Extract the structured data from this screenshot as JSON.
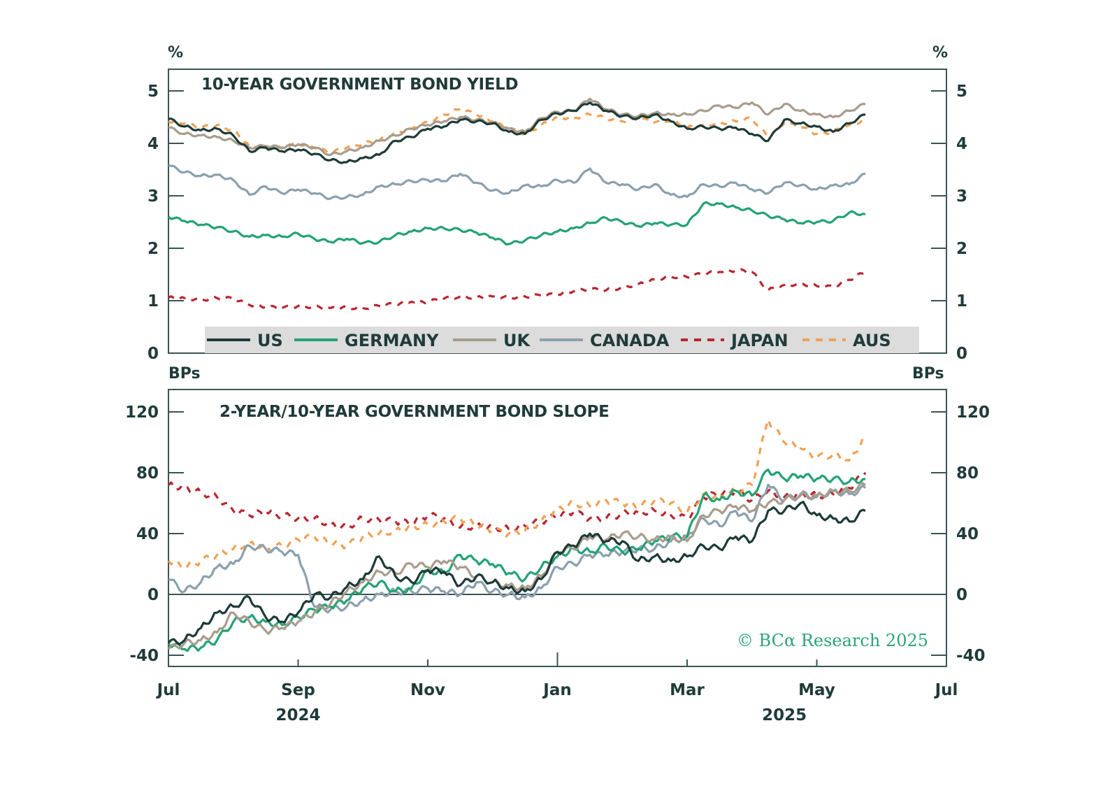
{
  "colors": {
    "axis": "#3a5453",
    "text": "#1f3b3a",
    "legend_bg": "#dcdcdc",
    "credit": "#2aa37a"
  },
  "credit": "© BCα Research 2025",
  "x_axis": {
    "ticks": [
      {
        "m": 0,
        "label": "Jul",
        "year": ""
      },
      {
        "m": 2,
        "label": "Sep",
        "year": "2024"
      },
      {
        "m": 4,
        "label": "Nov",
        "year": ""
      },
      {
        "m": 6,
        "label": "Jan",
        "year": ""
      },
      {
        "m": 8,
        "label": "Mar",
        "year": "2025"
      },
      {
        "m": 10,
        "label": "May",
        "year": ""
      },
      {
        "m": 12,
        "label": "Jul",
        "year": ""
      }
    ],
    "year_labels": [
      {
        "m": 2,
        "label": "2024"
      },
      {
        "m": 9.5,
        "label": "2025"
      }
    ],
    "range": [
      0,
      12
    ],
    "unit": "months since Jul 2024"
  },
  "legend": [
    {
      "key": "us",
      "label": "US",
      "color": "#1d3b38",
      "dashed": false
    },
    {
      "key": "germany",
      "label": "GERMANY",
      "color": "#23a275",
      "dashed": false
    },
    {
      "key": "uk",
      "label": "UK",
      "color": "#a89c8c",
      "dashed": false
    },
    {
      "key": "canada",
      "label": "CANADA",
      "color": "#8aa0ae",
      "dashed": false
    },
    {
      "key": "japan",
      "label": "JAPAN",
      "color": "#b8262e",
      "dashed": true
    },
    {
      "key": "aus",
      "label": "AUS",
      "color": "#f0a054",
      "dashed": true
    }
  ],
  "chart_data": [
    {
      "type": "line",
      "title": "10-YEAR GOVERNMENT BOND YIELD",
      "ylabel_left": "%",
      "ylabel_right": "%",
      "ylim": [
        0,
        5.4
      ],
      "yticks": [
        0,
        1,
        2,
        3,
        4,
        5
      ],
      "xlabel": "",
      "legend_position": "bottom",
      "x": [
        0,
        0.25,
        0.5,
        0.75,
        1.0,
        1.25,
        1.5,
        1.75,
        2.0,
        2.25,
        2.5,
        2.75,
        3.0,
        3.25,
        3.5,
        3.75,
        4.0,
        4.25,
        4.5,
        4.75,
        5.0,
        5.25,
        5.5,
        5.75,
        6.0,
        6.25,
        6.5,
        6.75,
        7.0,
        7.25,
        7.5,
        7.75,
        8.0,
        8.25,
        8.5,
        8.75,
        9.0,
        9.25,
        9.5,
        9.75,
        10.0,
        10.25,
        10.5,
        10.75
      ],
      "series": [
        {
          "name": "US",
          "values": [
            4.47,
            4.32,
            4.25,
            4.28,
            4.15,
            3.85,
            3.92,
            3.85,
            3.88,
            3.8,
            3.68,
            3.64,
            3.72,
            3.78,
            4.05,
            4.12,
            4.28,
            4.32,
            4.45,
            4.42,
            4.38,
            4.22,
            4.18,
            4.45,
            4.57,
            4.62,
            4.78,
            4.62,
            4.52,
            4.48,
            4.55,
            4.42,
            4.28,
            4.32,
            4.28,
            4.3,
            4.18,
            4.05,
            4.45,
            4.38,
            4.32,
            4.22,
            4.38,
            4.55
          ]
        },
        {
          "name": "GERMANY",
          "values": [
            2.6,
            2.52,
            2.45,
            2.4,
            2.32,
            2.22,
            2.25,
            2.22,
            2.28,
            2.18,
            2.12,
            2.18,
            2.1,
            2.12,
            2.25,
            2.32,
            2.38,
            2.38,
            2.35,
            2.3,
            2.2,
            2.08,
            2.15,
            2.25,
            2.32,
            2.38,
            2.48,
            2.58,
            2.5,
            2.42,
            2.48,
            2.45,
            2.45,
            2.85,
            2.85,
            2.78,
            2.72,
            2.62,
            2.55,
            2.48,
            2.5,
            2.52,
            2.68,
            2.65
          ]
        },
        {
          "name": "UK",
          "values": [
            4.3,
            4.18,
            4.15,
            4.12,
            4.05,
            3.92,
            3.95,
            3.92,
            3.98,
            3.92,
            3.78,
            3.85,
            3.92,
            4.05,
            4.15,
            4.28,
            4.35,
            4.42,
            4.5,
            4.45,
            4.4,
            4.28,
            4.22,
            4.48,
            4.6,
            4.62,
            4.85,
            4.65,
            4.55,
            4.52,
            4.58,
            4.55,
            4.55,
            4.62,
            4.72,
            4.68,
            4.78,
            4.55,
            4.75,
            4.62,
            4.55,
            4.5,
            4.62,
            4.75
          ]
        },
        {
          "name": "CANADA",
          "values": [
            3.58,
            3.45,
            3.38,
            3.4,
            3.3,
            3.02,
            3.18,
            3.05,
            3.12,
            3.05,
            2.95,
            2.98,
            3.02,
            3.18,
            3.22,
            3.28,
            3.3,
            3.28,
            3.42,
            3.25,
            3.1,
            3.05,
            3.2,
            3.18,
            3.3,
            3.25,
            3.52,
            3.25,
            3.22,
            3.12,
            3.22,
            3.02,
            2.98,
            3.22,
            3.18,
            3.25,
            3.12,
            3.05,
            3.25,
            3.2,
            3.12,
            3.2,
            3.22,
            3.42
          ]
        },
        {
          "name": "JAPAN",
          "values": [
            1.06,
            1.05,
            1.02,
            1.05,
            1.04,
            0.92,
            0.88,
            0.86,
            0.9,
            0.88,
            0.86,
            0.87,
            0.86,
            0.9,
            0.94,
            0.98,
            0.98,
            1.04,
            1.08,
            1.06,
            1.08,
            1.06,
            1.08,
            1.1,
            1.12,
            1.18,
            1.22,
            1.2,
            1.25,
            1.32,
            1.4,
            1.46,
            1.45,
            1.52,
            1.55,
            1.58,
            1.55,
            1.2,
            1.3,
            1.32,
            1.28,
            1.26,
            1.4,
            1.55
          ]
        },
        {
          "name": "AUS",
          "values": [
            4.42,
            4.38,
            4.3,
            4.35,
            4.25,
            3.95,
            3.95,
            3.9,
            4.0,
            3.92,
            3.82,
            3.92,
            4.0,
            4.05,
            4.2,
            4.28,
            4.4,
            4.55,
            4.65,
            4.55,
            4.42,
            4.28,
            4.18,
            4.35,
            4.5,
            4.48,
            4.55,
            4.48,
            4.42,
            4.48,
            4.4,
            4.45,
            4.3,
            4.35,
            4.38,
            4.42,
            4.48,
            4.12,
            4.38,
            4.32,
            4.18,
            4.22,
            4.35,
            4.45
          ]
        }
      ]
    },
    {
      "type": "line",
      "title": "2-YEAR/10-YEAR GOVERNMENT BOND SLOPE",
      "ylabel_left": "BPs",
      "ylabel_right": "BPs",
      "ylim": [
        -44,
        134
      ],
      "yticks": [
        -40,
        0,
        40,
        80,
        120
      ],
      "xlabel": "",
      "x": [
        0,
        0.25,
        0.5,
        0.75,
        1.0,
        1.25,
        1.5,
        1.75,
        2.0,
        2.25,
        2.5,
        2.75,
        3.0,
        3.25,
        3.5,
        3.75,
        4.0,
        4.25,
        4.5,
        4.75,
        5.0,
        5.25,
        5.5,
        5.75,
        6.0,
        6.25,
        6.5,
        6.75,
        7.0,
        7.25,
        7.5,
        7.75,
        8.0,
        8.25,
        8.5,
        8.75,
        9.0,
        9.25,
        9.5,
        9.75,
        10.0,
        10.25,
        10.5,
        10.75
      ],
      "series": [
        {
          "name": "US",
          "values": [
            -32,
            -30,
            -22,
            -12,
            -8,
            -2,
            -15,
            -18,
            -12,
            0,
            -2,
            5,
            10,
            25,
            12,
            8,
            16,
            15,
            6,
            12,
            8,
            4,
            2,
            10,
            28,
            32,
            40,
            35,
            35,
            22,
            25,
            22,
            25,
            32,
            30,
            38,
            35,
            55,
            55,
            60,
            52,
            50,
            48,
            55
          ]
        },
        {
          "name": "GERMANY",
          "values": [
            -32,
            -36,
            -35,
            -30,
            -18,
            -15,
            -18,
            -20,
            -15,
            -10,
            -8,
            -4,
            4,
            8,
            2,
            4,
            16,
            14,
            26,
            22,
            20,
            14,
            10,
            18,
            25,
            30,
            28,
            32,
            28,
            30,
            35,
            38,
            38,
            65,
            62,
            68,
            65,
            82,
            76,
            78,
            76,
            76,
            74,
            76
          ]
        },
        {
          "name": "UK",
          "values": [
            -36,
            -32,
            -30,
            -25,
            -12,
            -18,
            -24,
            -22,
            -18,
            -12,
            -6,
            2,
            8,
            15,
            14,
            20,
            18,
            22,
            18,
            12,
            8,
            6,
            4,
            12,
            28,
            30,
            38,
            36,
            40,
            38,
            36,
            38,
            35,
            52,
            55,
            58,
            55,
            60,
            62,
            65,
            65,
            68,
            68,
            72
          ]
        },
        {
          "name": "CANADA",
          "values": [
            10,
            2,
            8,
            18,
            20,
            32,
            30,
            28,
            26,
            -8,
            -10,
            -8,
            -4,
            0,
            2,
            2,
            4,
            2,
            0,
            8,
            2,
            0,
            -2,
            4,
            18,
            20,
            26,
            26,
            28,
            30,
            30,
            35,
            38,
            50,
            45,
            55,
            48,
            72,
            62,
            66,
            64,
            68,
            66,
            70
          ]
        },
        {
          "name": "JAPAN",
          "values": [
            72,
            70,
            67,
            64,
            55,
            52,
            54,
            52,
            50,
            50,
            46,
            44,
            50,
            49,
            48,
            47,
            52,
            50,
            44,
            45,
            44,
            43,
            45,
            48,
            52,
            54,
            50,
            50,
            53,
            54,
            55,
            52,
            50,
            64,
            66,
            68,
            62,
            68,
            64,
            66,
            65,
            66,
            70,
            80
          ]
        },
        {
          "name": "AUS",
          "values": [
            22,
            18,
            22,
            26,
            30,
            34,
            30,
            32,
            36,
            38,
            34,
            32,
            38,
            40,
            42,
            44,
            46,
            48,
            50,
            46,
            42,
            40,
            42,
            48,
            56,
            60,
            58,
            62,
            60,
            58,
            62,
            60,
            54,
            66,
            64,
            68,
            72,
            115,
            100,
            96,
            90,
            92,
            88,
            104
          ]
        }
      ]
    }
  ]
}
